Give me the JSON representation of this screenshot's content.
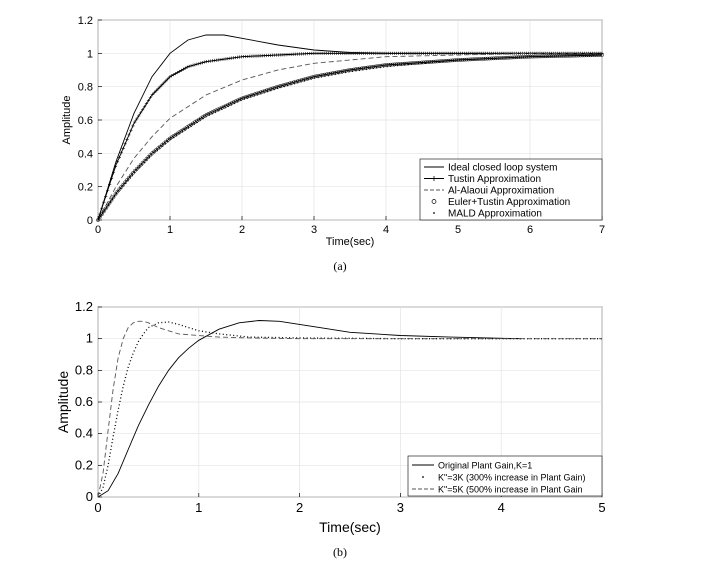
{
  "chart_data": [
    {
      "type": "line",
      "caption": "(a)",
      "xlabel": "Time(sec)",
      "ylabel": "Amplitude",
      "xlim": [
        0,
        7
      ],
      "ylim": [
        0,
        1.2
      ],
      "xticks": [
        "0",
        "1",
        "2",
        "3",
        "4",
        "5",
        "6",
        "7"
      ],
      "yticks": [
        "0",
        "0.2",
        "0.4",
        "0.6",
        "0.8",
        "1",
        "1.2"
      ],
      "grid": true,
      "legend_position": "bottom-right",
      "series": [
        {
          "name": "Ideal closed loop system",
          "style": "solid",
          "x": [
            0,
            0.25,
            0.5,
            0.75,
            1,
            1.25,
            1.5,
            1.75,
            2,
            2.5,
            3,
            3.5,
            4,
            4.5,
            5,
            6,
            7
          ],
          "y": [
            0,
            0.35,
            0.64,
            0.86,
            1.0,
            1.08,
            1.11,
            1.11,
            1.09,
            1.05,
            1.02,
            1.005,
            1.0,
            1.0,
            1.0,
            1.0,
            1.0
          ]
        },
        {
          "name": "Tustin Approximation",
          "style": "plus",
          "x": [
            0,
            0.25,
            0.5,
            0.75,
            1,
            1.25,
            1.5,
            2,
            2.5,
            3,
            3.5,
            4,
            4.5,
            5,
            6,
            7
          ],
          "y": [
            0,
            0.33,
            0.58,
            0.75,
            0.86,
            0.92,
            0.95,
            0.98,
            0.99,
            1.0,
            1.0,
            1.0,
            1.0,
            1.0,
            1.0,
            1.0
          ]
        },
        {
          "name": "Al-Alaoui Approximation",
          "style": "dashed",
          "x": [
            0,
            0.25,
            0.5,
            0.75,
            1,
            1.5,
            2,
            2.5,
            3,
            3.5,
            4,
            5,
            6,
            7
          ],
          "y": [
            0,
            0.2,
            0.37,
            0.5,
            0.61,
            0.75,
            0.84,
            0.9,
            0.94,
            0.96,
            0.98,
            0.99,
            1.0,
            1.0
          ]
        },
        {
          "name": "Euler+Tustin Approximation",
          "style": "circle",
          "x": [
            0,
            0.25,
            0.5,
            0.75,
            1,
            1.5,
            2,
            2.5,
            3,
            3.5,
            4,
            5,
            6,
            7
          ],
          "y": [
            0,
            0.16,
            0.29,
            0.4,
            0.49,
            0.63,
            0.73,
            0.8,
            0.86,
            0.9,
            0.93,
            0.96,
            0.98,
            0.99
          ]
        },
        {
          "name": "MALD Approximation",
          "style": "dot",
          "x": [
            0,
            0.25,
            0.5,
            0.75,
            1,
            1.5,
            2,
            2.5,
            3,
            3.5,
            4,
            5,
            6,
            7
          ],
          "y": [
            0,
            0.15,
            0.28,
            0.39,
            0.48,
            0.62,
            0.72,
            0.79,
            0.85,
            0.89,
            0.92,
            0.96,
            0.98,
            0.99
          ]
        }
      ]
    },
    {
      "type": "line",
      "caption": "(b)",
      "xlabel": "Time(sec)",
      "ylabel": "Amplitude",
      "xlim": [
        0,
        5
      ],
      "ylim": [
        0,
        1.2
      ],
      "xticks": [
        "0",
        "1",
        "2",
        "3",
        "4",
        "5"
      ],
      "yticks": [
        "0",
        "0.2",
        "0.4",
        "0.6",
        "0.8",
        "1",
        "1.2"
      ],
      "grid": true,
      "legend_position": "bottom-right",
      "series": [
        {
          "name": "Original Plant Gain,K=1",
          "style": "solid",
          "x": [
            0,
            0.1,
            0.2,
            0.3,
            0.4,
            0.5,
            0.6,
            0.7,
            0.8,
            0.9,
            1.0,
            1.2,
            1.4,
            1.6,
            1.8,
            2.0,
            2.2,
            2.5,
            3.0,
            3.5,
            4.2
          ],
          "y": [
            0,
            0.04,
            0.15,
            0.3,
            0.45,
            0.58,
            0.7,
            0.8,
            0.88,
            0.94,
            0.99,
            1.06,
            1.1,
            1.115,
            1.11,
            1.09,
            1.07,
            1.04,
            1.02,
            1.01,
            1.0
          ]
        },
        {
          "name": "K\"=3K (300% increase in Plant Gain)",
          "style": "dot",
          "x": [
            0,
            0.05,
            0.1,
            0.15,
            0.2,
            0.25,
            0.3,
            0.35,
            0.4,
            0.45,
            0.5,
            0.6,
            0.7,
            0.8,
            0.9,
            1.0,
            1.2,
            1.5,
            2.0,
            3.0,
            4.0,
            5.0
          ],
          "y": [
            0,
            0.06,
            0.2,
            0.38,
            0.55,
            0.7,
            0.82,
            0.91,
            0.98,
            1.03,
            1.07,
            1.1,
            1.105,
            1.09,
            1.07,
            1.05,
            1.03,
            1.01,
            1.005,
            1.0,
            1.0,
            1.0
          ]
        },
        {
          "name": "K\"=5K (500% increase in Plant Gain",
          "style": "dashed",
          "x": [
            0,
            0.05,
            0.1,
            0.15,
            0.2,
            0.25,
            0.3,
            0.35,
            0.4,
            0.45,
            0.5,
            0.6,
            0.7,
            0.8,
            1.0,
            1.2,
            1.5,
            2.0,
            3.0,
            4.0,
            5.0
          ],
          "y": [
            0,
            0.15,
            0.42,
            0.68,
            0.88,
            1.0,
            1.07,
            1.1,
            1.11,
            1.11,
            1.1,
            1.07,
            1.05,
            1.03,
            1.02,
            1.01,
            1.005,
            1.0,
            1.0,
            1.0,
            1.0
          ]
        }
      ]
    }
  ]
}
